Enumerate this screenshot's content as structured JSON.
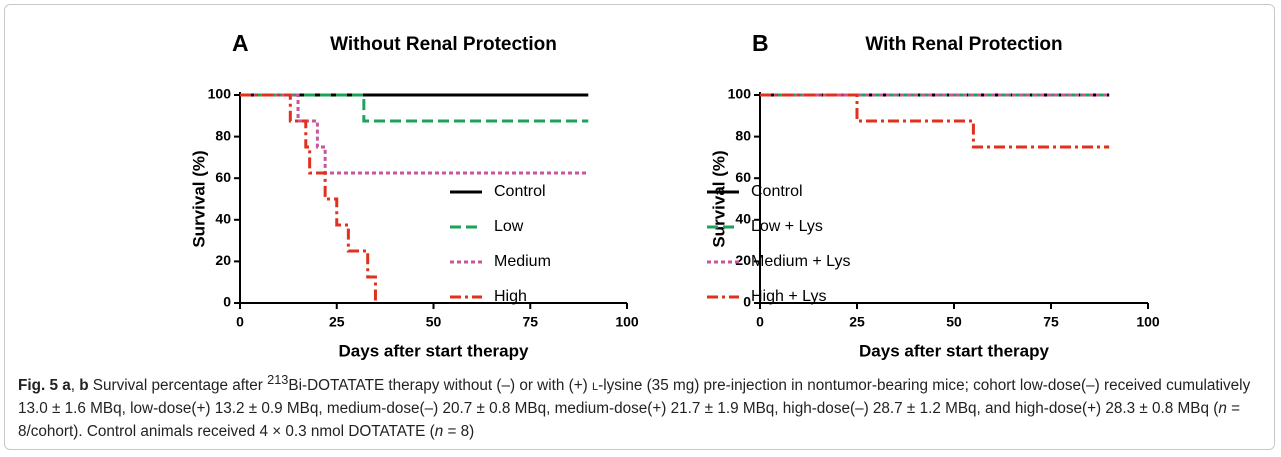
{
  "chart_data": [
    {
      "type": "step",
      "panel": "A",
      "title": "Without Renal Protection",
      "xlabel": "Days after start therapy",
      "ylabel": "Survival (%)",
      "xlim": [
        0,
        100
      ],
      "ylim": [
        0,
        100
      ],
      "xticks": [
        0,
        25,
        50,
        75,
        100
      ],
      "yticks": [
        0,
        20,
        40,
        60,
        80,
        100
      ],
      "grid": false,
      "series": [
        {
          "name": "Control",
          "color": "#000000",
          "dash": "solid",
          "x": [
            0,
            90
          ],
          "values": [
            100,
            100
          ]
        },
        {
          "name": "Low",
          "color": "#1aa35a",
          "dash": "dashed",
          "x": [
            0,
            32,
            90
          ],
          "values": [
            100,
            87.5,
            87.5
          ]
        },
        {
          "name": "Medium",
          "color": "#c9569a",
          "dash": "dotted",
          "x": [
            0,
            15,
            20,
            22,
            90
          ],
          "values": [
            100,
            87.5,
            75,
            62.5,
            62.5
          ]
        },
        {
          "name": "High",
          "color": "#e0301e",
          "dash": "dashdot",
          "x": [
            0,
            13,
            17,
            18,
            22,
            25,
            28,
            33,
            35
          ],
          "values": [
            100,
            87.5,
            75,
            62.5,
            50,
            37.5,
            25,
            12.5,
            0
          ]
        }
      ]
    },
    {
      "type": "step",
      "panel": "B",
      "title": "With Renal Protection",
      "xlabel": "Days after start therapy",
      "ylabel": "Survival (%)",
      "xlim": [
        0,
        100
      ],
      "ylim": [
        0,
        100
      ],
      "xticks": [
        0,
        25,
        50,
        75,
        100
      ],
      "yticks": [
        0,
        20,
        40,
        60,
        80,
        100
      ],
      "grid": false,
      "series": [
        {
          "name": "Control",
          "color": "#000000",
          "dash": "solid",
          "x": [
            0,
            90
          ],
          "values": [
            100,
            100
          ]
        },
        {
          "name": "Low + Lys",
          "color": "#1aa35a",
          "dash": "dashed",
          "x": [
            0,
            90
          ],
          "values": [
            100,
            100
          ]
        },
        {
          "name": "Medium + Lys",
          "color": "#c9569a",
          "dash": "dotted",
          "x": [
            0,
            90
          ],
          "values": [
            100,
            100
          ]
        },
        {
          "name": "High + Lys",
          "color": "#e0301e",
          "dash": "dashdot",
          "x": [
            0,
            25,
            55,
            90
          ],
          "values": [
            100,
            87.5,
            75,
            75
          ]
        }
      ]
    }
  ],
  "caption": {
    "parts": [
      "Fig. 5 a",
      ", ",
      "b",
      " Survival percentage after ",
      "213",
      "Bi-DOTATATE therapy without (–) or with (+) ",
      "l",
      "-lysine (35 mg) pre-injection in nontumor-bearing mice; cohort low-dose(–) received cumulatively 13.0 ± 1.6 MBq, low-dose(+) 13.2 ± 0.9 MBq, medium-dose(–) 20.7 ± 0.8 MBq, medium-dose(+) 21.7 ± 1.9 MBq, high-dose(–) 28.7 ± 1.2 MBq, and high-dose(+) 28.3 ± 0.8 MBq (",
      "n",
      " = 8/cohort). Control animals received 4 × 0.3 nmol DOTATATE (",
      "n",
      " = 8)"
    ]
  }
}
